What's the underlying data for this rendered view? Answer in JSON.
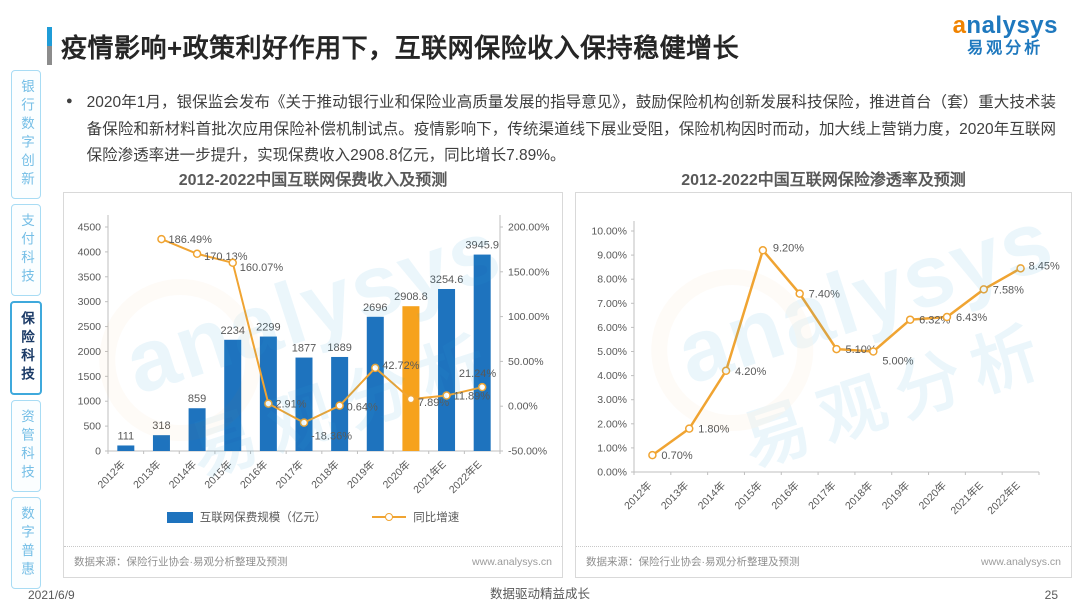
{
  "colors": {
    "bar": "#1E73BE",
    "bar_highlight": "#F6A21D",
    "line": "#F0A432",
    "accent_blue": "#1F9CD7",
    "brand_blue": "#1E78BE",
    "brand_orange": "#F08300"
  },
  "header": {
    "title": "疫情影响+政策利好作用下，互联网保险收入保持稳健增长",
    "logo_brand": "analysys",
    "logo_cn": "易观分析"
  },
  "sidebar": {
    "items": [
      {
        "label": "银行数字创新",
        "active": false
      },
      {
        "label": "支付科技",
        "active": false
      },
      {
        "label": "保险科技",
        "active": true
      },
      {
        "label": "资管科技",
        "active": false
      },
      {
        "label": "数字普惠",
        "active": false
      }
    ]
  },
  "bullet": {
    "text": "2020年1月，银保监会发布《关于推动银行业和保险业高质量发展的指导意见》，鼓励保险机构创新发展科技保险，推进首台（套）重大技术装备保险和新材料首批次应用保险补偿机制试点。疫情影响下，传统渠道线下展业受阻，保险机构因时而动，加大线上营销力度，2020年互联网保险渗透率进一步提升，实现保费收入2908.8亿元，同比增长7.89%。"
  },
  "chart_data": [
    {
      "type": "bar",
      "title": "2012-2022中国互联网保费收入及预测",
      "categories": [
        "2012年",
        "2013年",
        "2014年",
        "2015年",
        "2016年",
        "2017年",
        "2018年",
        "2019年",
        "2020年",
        "2021年E",
        "2022年E"
      ],
      "series": [
        {
          "name": "互联网保费规模（亿元）",
          "type": "bar",
          "axis": "left",
          "values": [
            111,
            318,
            859,
            2234,
            2299,
            1877,
            1889,
            2696,
            2908.8,
            3254.6,
            3945.9
          ],
          "labels": [
            "111",
            "318",
            "859",
            "2234",
            "2299",
            "1877",
            "1889",
            "2696",
            "2908.8",
            "3254.6",
            "3945.9"
          ],
          "highlight_index": 8
        },
        {
          "name": "同比增速",
          "type": "line",
          "axis": "right",
          "values": [
            null,
            186.49,
            170.13,
            160.07,
            2.91,
            -18.36,
            0.64,
            42.72,
            7.89,
            11.89,
            21.24
          ],
          "labels": [
            null,
            "186.49%",
            "170.13%",
            "160.07%",
            "2.91%",
            "-18.36%",
            "0.64%",
            "42.72%",
            "7.89%",
            "11.89%",
            "21.24%"
          ]
        }
      ],
      "left_axis": {
        "min": 0,
        "max": 4500,
        "step": 500
      },
      "right_axis": {
        "min": -50,
        "max": 200,
        "step": 50,
        "suffix": "%"
      },
      "legend_position": "bottom",
      "grid": false,
      "source": "数据来源：保险行业协会·易观分析整理及预测",
      "website": "www.analysys.cn"
    },
    {
      "type": "line",
      "title": "2012-2022中国互联网保险渗透率及预测",
      "categories": [
        "2012年",
        "2013年",
        "2014年",
        "2015年",
        "2016年",
        "2017年",
        "2018年",
        "2019年",
        "2020年",
        "2021年E",
        "2022年E"
      ],
      "values": [
        0.7,
        1.8,
        4.2,
        9.2,
        7.4,
        5.1,
        5.0,
        6.32,
        6.43,
        7.58,
        8.45
      ],
      "labels": [
        "0.70%",
        "1.80%",
        "4.20%",
        "9.20%",
        "7.40%",
        "5.10%",
        "5.00%",
        "6.32%",
        "6.43%",
        "7.58%",
        "8.45%"
      ],
      "y_axis": {
        "min": 0,
        "max": 10,
        "step": 1,
        "suffix": "%"
      },
      "grid": false,
      "source": "数据来源：保险行业协会·易观分析整理及预测",
      "website": "www.analysys.cn"
    }
  ],
  "watermark": {
    "line1": "analysys",
    "line2": "易观分析"
  },
  "page_footer": {
    "date": "2021/6/9",
    "slogan": "数据驱动精益成长",
    "page": "25"
  }
}
